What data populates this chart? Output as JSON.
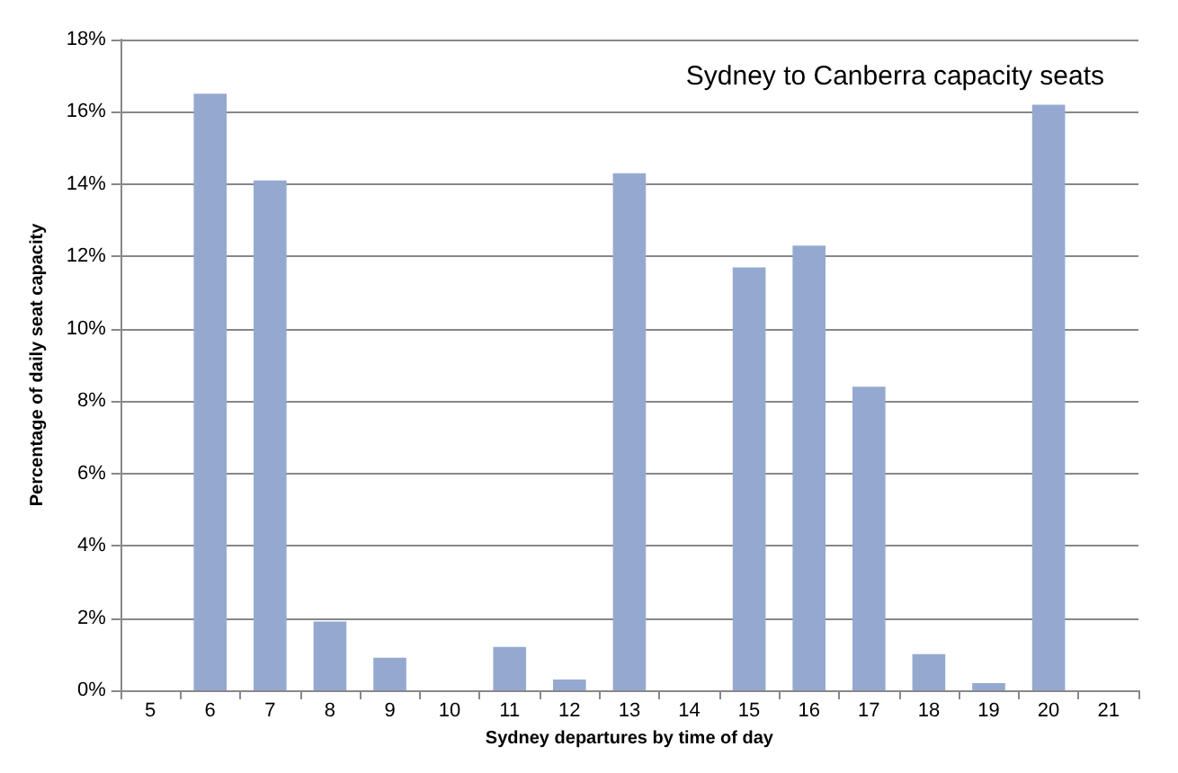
{
  "chart_data": {
    "type": "bar",
    "title": "Sydney to Canberra capacity seats",
    "xlabel": "Sydney departures by time of day",
    "ylabel": "Percentage of daily seat capacity",
    "categories": [
      "5",
      "6",
      "7",
      "8",
      "9",
      "10",
      "11",
      "12",
      "13",
      "14",
      "15",
      "16",
      "17",
      "18",
      "19",
      "20",
      "21"
    ],
    "values": [
      0,
      16.5,
      14.1,
      1.9,
      0.9,
      0,
      1.2,
      0.3,
      14.3,
      0,
      11.7,
      12.3,
      8.4,
      1.0,
      0.2,
      16.2,
      0
    ],
    "color": "#95a9d0",
    "ylim": [
      0,
      18
    ],
    "yticks": [
      {
        "value": 0,
        "label": "0%"
      },
      {
        "value": 2,
        "label": "2%"
      },
      {
        "value": 4,
        "label": "4%"
      },
      {
        "value": 6,
        "label": "6%"
      },
      {
        "value": 8,
        "label": "8%"
      },
      {
        "value": 10,
        "label": "10%"
      },
      {
        "value": 12,
        "label": "12%"
      },
      {
        "value": 14,
        "label": "14%"
      },
      {
        "value": 16,
        "label": "16%"
      },
      {
        "value": 18,
        "label": "18%"
      }
    ],
    "grid": "y"
  }
}
